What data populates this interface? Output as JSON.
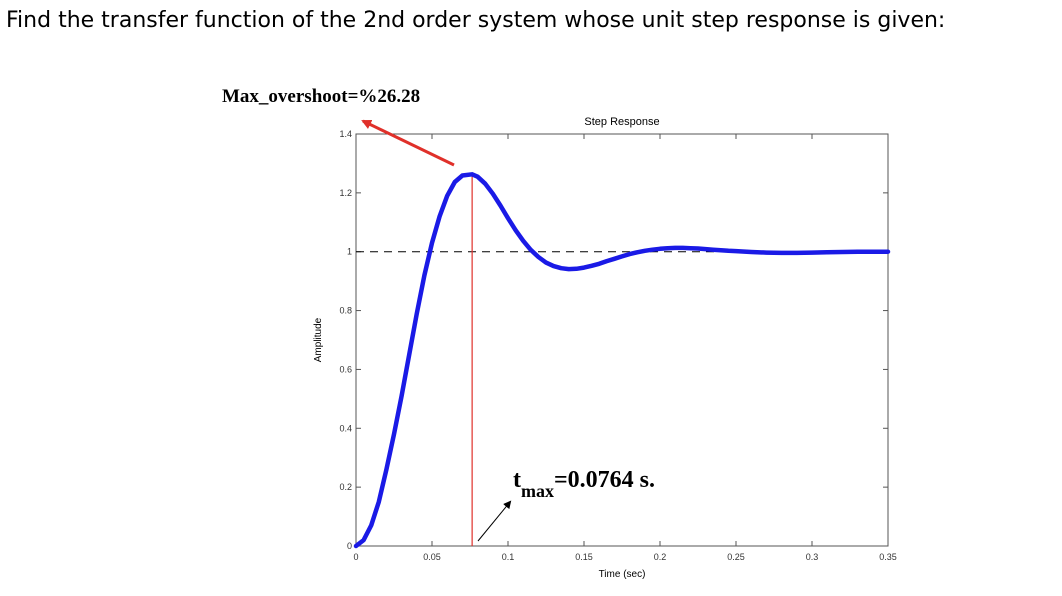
{
  "question": "Find the transfer function of the 2nd order system whose unit step response is given:",
  "annotations": {
    "overshoot_label": "Max_overshoot=%26.28",
    "tmax_t": "t",
    "tmax_sub": "max",
    "tmax_value": "=0.0764 s."
  },
  "colors": {
    "response": "#1a1ae6",
    "overshoot_arrow": "#e0302a",
    "peak_line": "#e0302a",
    "tmax_arrow": "#000000",
    "reference_line": "#000000"
  },
  "chart_data": {
    "type": "line",
    "title": "Step Response",
    "xlabel": "Time (sec)",
    "ylabel": "Amplitude",
    "xlim": [
      0,
      0.35
    ],
    "ylim": [
      0,
      1.4
    ],
    "xticks": [
      0,
      0.05,
      0.1,
      0.15,
      0.2,
      0.25,
      0.3,
      0.35
    ],
    "xtick_labels": [
      "0",
      "0.05",
      "0.1",
      "0.15",
      "0.2",
      "0.25",
      "0.3",
      "0.35"
    ],
    "yticks": [
      0,
      0.2,
      0.4,
      0.6,
      0.8,
      1,
      1.2,
      1.4
    ],
    "ytick_labels": [
      "0",
      "0.2",
      "0.4",
      "0.6",
      "0.8",
      "1",
      "1.2",
      "1.4"
    ],
    "grid": false,
    "steady_state": 1,
    "peak": {
      "t": 0.0764,
      "y": 1.2628
    },
    "series": [
      {
        "x": [
          0,
          0.005,
          0.01,
          0.015,
          0.02,
          0.025,
          0.03,
          0.035,
          0.04,
          0.045,
          0.05,
          0.055,
          0.06,
          0.065,
          0.07,
          0.0764,
          0.08,
          0.085,
          0.09,
          0.095,
          0.1,
          0.105,
          0.11,
          0.115,
          0.12,
          0.125,
          0.13,
          0.135,
          0.14,
          0.145,
          0.15,
          0.155,
          0.16,
          0.165,
          0.17,
          0.175,
          0.18,
          0.185,
          0.19,
          0.195,
          0.2,
          0.205,
          0.21,
          0.215,
          0.22,
          0.225,
          0.23,
          0.235,
          0.24,
          0.245,
          0.25,
          0.26,
          0.27,
          0.28,
          0.29,
          0.3,
          0.31,
          0.32,
          0.33,
          0.34,
          0.35
        ],
        "y": [
          0,
          0.02,
          0.07,
          0.15,
          0.26,
          0.38,
          0.51,
          0.65,
          0.79,
          0.92,
          1.03,
          1.12,
          1.19,
          1.237,
          1.259,
          1.263,
          1.255,
          1.231,
          1.197,
          1.157,
          1.114,
          1.073,
          1.037,
          1.006,
          0.982,
          0.963,
          0.951,
          0.944,
          0.941,
          0.942,
          0.946,
          0.952,
          0.959,
          0.968,
          0.976,
          0.984,
          0.992,
          0.998,
          1.003,
          1.007,
          1.01,
          1.012,
          1.013,
          1.013,
          1.012,
          1.011,
          1.009,
          1.007,
          1.005,
          1.003,
          1.002,
          0.999,
          0.997,
          0.996,
          0.996,
          0.997,
          0.998,
          0.999,
          1.0,
          1.0,
          1.0
        ]
      }
    ]
  }
}
